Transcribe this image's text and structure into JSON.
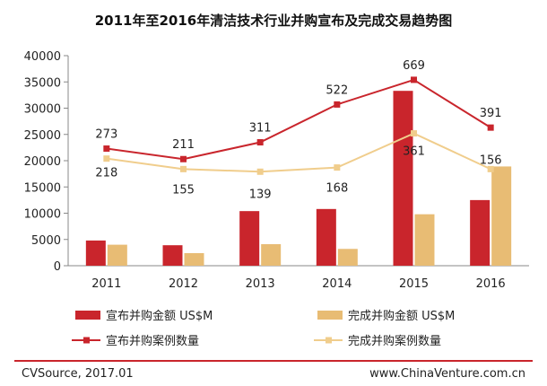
{
  "chart_data": {
    "type": "bar",
    "title": "2011年至2016年清洁技术行业并购宣布及完成交易趋势图",
    "categories": [
      "2011",
      "2012",
      "2013",
      "2014",
      "2015",
      "2016"
    ],
    "ylim": [
      0,
      40000
    ],
    "y_ticks": [
      "0",
      "5000",
      "10000",
      "15000",
      "20000",
      "25000",
      "30000",
      "35000",
      "40000"
    ],
    "grid": false,
    "legend_position": "bottom",
    "series": [
      {
        "name": "宣布并购金额 US$M",
        "kind": "bar",
        "axis": "left",
        "values": [
          4800,
          3900,
          10400,
          10800,
          33300,
          12500
        ]
      },
      {
        "name": "完成并购金额 US$M",
        "kind": "bar",
        "axis": "left",
        "values": [
          4000,
          2400,
          4100,
          3200,
          9800,
          18900
        ]
      },
      {
        "name": "宣布并购案例数量",
        "kind": "line",
        "axis": "secondary",
        "values": [
          273,
          211,
          311,
          522,
          669,
          391
        ],
        "plot_y": [
          22300,
          20300,
          23500,
          30700,
          35400,
          26300
        ],
        "labels": [
          "273",
          "211",
          "311",
          "522",
          "669",
          "391"
        ]
      },
      {
        "name": "完成并购案例数量",
        "kind": "line",
        "axis": "secondary",
        "values": [
          218,
          155,
          139,
          168,
          361,
          156
        ],
        "plot_y": [
          20400,
          18400,
          17900,
          18700,
          25200,
          18400
        ],
        "labels": [
          "218",
          "155",
          "139",
          "168",
          "361",
          "156"
        ]
      }
    ],
    "colors": {
      "announced_bar": "#c9252c",
      "completed_bar": "#e8bc74",
      "announced_line": "#c9252c",
      "completed_line": "#f0cd8c"
    }
  },
  "footer": {
    "source": "CVSource, 2017.01",
    "site": "www.ChinaVenture.com.cn",
    "divider_color": "#c9252c"
  }
}
